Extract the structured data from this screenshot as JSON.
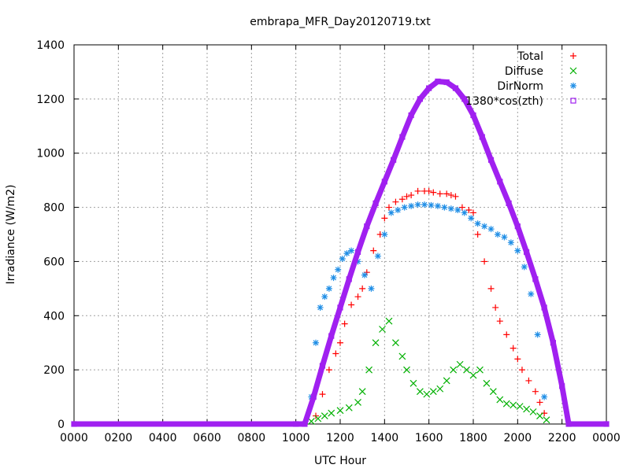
{
  "chart_data": {
    "type": "scatter",
    "title": "embrapa_MFR_Day20120719.txt",
    "xlabel": "UTC Hour",
    "ylabel": "Irradiance (W/m2)",
    "xlim": [
      0,
      24
    ],
    "ylim": [
      0,
      1400
    ],
    "x_ticks": [
      "0000",
      "0200",
      "0400",
      "0600",
      "0800",
      "1000",
      "1200",
      "1400",
      "1600",
      "1800",
      "2000",
      "2200",
      "0000"
    ],
    "y_ticks": [
      "0",
      "200",
      "400",
      "600",
      "800",
      "1000",
      "1200",
      "1400"
    ],
    "grid": true,
    "legend_position": "top-right",
    "colors": {
      "Total": "#ff0000",
      "Diffuse": "#00b000",
      "DirNorm": "#1f8ee6",
      "cos": "#a020f0"
    },
    "series": [
      {
        "name": "Total",
        "marker": "plus",
        "x": [
          10.9,
          11.2,
          11.5,
          11.8,
          12.0,
          12.2,
          12.5,
          12.8,
          13.0,
          13.2,
          13.5,
          13.8,
          14.0,
          14.2,
          14.5,
          14.8,
          15.0,
          15.2,
          15.5,
          15.8,
          16.0,
          16.2,
          16.5,
          16.8,
          17.0,
          17.2,
          17.5,
          17.8,
          18.0,
          18.2,
          18.5,
          18.8,
          19.0,
          19.2,
          19.5,
          19.8,
          20.0,
          20.2,
          20.5,
          20.8,
          21.0,
          21.2
        ],
        "y": [
          30,
          110,
          200,
          260,
          300,
          370,
          440,
          470,
          500,
          560,
          640,
          700,
          760,
          800,
          820,
          830,
          840,
          845,
          860,
          860,
          860,
          855,
          850,
          850,
          845,
          840,
          800,
          790,
          780,
          700,
          600,
          500,
          430,
          380,
          330,
          280,
          240,
          200,
          160,
          120,
          80,
          40
        ]
      },
      {
        "name": "Diffuse",
        "marker": "cross",
        "x": [
          10.7,
          11.0,
          11.3,
          11.6,
          12.0,
          12.4,
          12.8,
          13.0,
          13.3,
          13.6,
          13.9,
          14.2,
          14.5,
          14.8,
          15.0,
          15.3,
          15.6,
          15.9,
          16.2,
          16.5,
          16.8,
          17.1,
          17.4,
          17.7,
          18.0,
          18.3,
          18.6,
          18.9,
          19.2,
          19.5,
          19.8,
          20.1,
          20.4,
          20.7,
          21.0,
          21.3
        ],
        "y": [
          10,
          20,
          30,
          40,
          50,
          60,
          80,
          120,
          200,
          300,
          350,
          380,
          300,
          250,
          200,
          150,
          120,
          110,
          120,
          130,
          160,
          200,
          220,
          200,
          180,
          200,
          150,
          120,
          90,
          75,
          70,
          65,
          55,
          45,
          30,
          15
        ]
      },
      {
        "name": "DirNorm",
        "marker": "star",
        "x": [
          10.7,
          10.9,
          11.1,
          11.3,
          11.5,
          11.7,
          11.9,
          12.1,
          12.3,
          12.5,
          12.8,
          13.1,
          13.4,
          13.7,
          14.0,
          14.3,
          14.6,
          14.9,
          15.2,
          15.5,
          15.8,
          16.1,
          16.4,
          16.7,
          17.0,
          17.3,
          17.6,
          17.9,
          18.2,
          18.5,
          18.8,
          19.1,
          19.4,
          19.7,
          20.0,
          20.3,
          20.6,
          20.9,
          21.2
        ],
        "y": [
          100,
          300,
          430,
          470,
          500,
          540,
          570,
          610,
          630,
          640,
          600,
          550,
          500,
          620,
          700,
          780,
          790,
          800,
          805,
          810,
          810,
          808,
          805,
          800,
          795,
          790,
          780,
          760,
          740,
          730,
          720,
          700,
          690,
          670,
          640,
          580,
          480,
          330,
          100
        ]
      },
      {
        "name": "1380*cos(zth)",
        "marker": "square",
        "x": [
          0,
          10.0,
          10.4,
          10.8,
          11.2,
          11.6,
          12.0,
          12.4,
          12.8,
          13.2,
          13.6,
          14.0,
          14.4,
          14.8,
          15.2,
          15.6,
          16.0,
          16.4,
          16.8,
          17.2,
          17.6,
          18.0,
          18.4,
          18.8,
          19.2,
          19.6,
          20.0,
          20.4,
          20.8,
          21.2,
          21.6,
          22.0,
          22.3,
          24
        ],
        "y": [
          0,
          0,
          0,
          100,
          215,
          325,
          430,
          535,
          635,
          730,
          815,
          895,
          975,
          1060,
          1140,
          1200,
          1240,
          1265,
          1262,
          1240,
          1200,
          1140,
          1060,
          975,
          895,
          815,
          730,
          635,
          535,
          430,
          300,
          140,
          0,
          0
        ]
      }
    ]
  }
}
